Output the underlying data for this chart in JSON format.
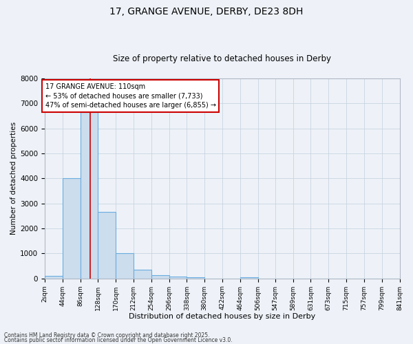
{
  "title1": "17, GRANGE AVENUE, DERBY, DE23 8DH",
  "title2": "Size of property relative to detached houses in Derby",
  "xlabel": "Distribution of detached houses by size in Derby",
  "ylabel": "Number of detached properties",
  "bin_edges": [
    2,
    44,
    86,
    128,
    170,
    212,
    254,
    296,
    338,
    380,
    422,
    464,
    506,
    547,
    589,
    631,
    673,
    715,
    757,
    799,
    841
  ],
  "bar_heights": [
    100,
    4000,
    6650,
    2650,
    1000,
    350,
    130,
    70,
    50,
    0,
    0,
    50,
    0,
    0,
    0,
    0,
    0,
    0,
    0,
    0
  ],
  "bar_color": "#ccdded",
  "bar_edgecolor": "#6aace0",
  "grid_color": "#c8d4e0",
  "background_color": "#eef2f8",
  "vline_x": 110,
  "vline_color": "#cc0000",
  "annotation_text": "17 GRANGE AVENUE: 110sqm\n← 53% of detached houses are smaller (7,733)\n47% of semi-detached houses are larger (6,855) →",
  "annotation_box_edgecolor": "#cc0000",
  "annotation_box_facecolor": "#ffffff",
  "ylim": [
    0,
    8000
  ],
  "yticks": [
    0,
    1000,
    2000,
    3000,
    4000,
    5000,
    6000,
    7000,
    8000
  ],
  "footer1": "Contains HM Land Registry data © Crown copyright and database right 2025.",
  "footer2": "Contains public sector information licensed under the Open Government Licence v3.0.",
  "tick_labels": [
    "2sqm",
    "44sqm",
    "86sqm",
    "128sqm",
    "170sqm",
    "212sqm",
    "254sqm",
    "296sqm",
    "338sqm",
    "380sqm",
    "422sqm",
    "464sqm",
    "506sqm",
    "547sqm",
    "589sqm",
    "631sqm",
    "673sqm",
    "715sqm",
    "757sqm",
    "799sqm",
    "841sqm"
  ],
  "title1_fontsize": 10,
  "title2_fontsize": 8.5,
  "xlabel_fontsize": 8,
  "ylabel_fontsize": 7.5,
  "tick_fontsize": 6.5,
  "ytick_fontsize": 7.5,
  "annotation_fontsize": 7,
  "footer_fontsize": 5.5
}
